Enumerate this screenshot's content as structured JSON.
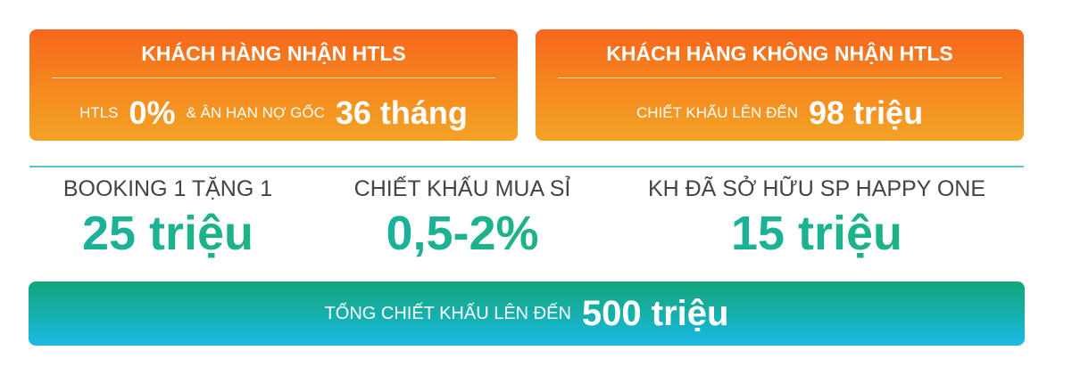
{
  "boxes": [
    {
      "title": "KHÁCH HÀNG NHẬN HTLS",
      "parts": [
        "HTLS",
        "0%",
        "& ÂN HẠN NỢ GỐC",
        "36 tháng"
      ]
    },
    {
      "title": "KHÁCH HÀNG KHÔNG NHẬN HTLS",
      "parts": [
        "CHIẾT KHẤU LÊN ĐẾN",
        "98 triệu"
      ]
    }
  ],
  "offers": [
    {
      "label": "BOOKING 1 TẶNG 1",
      "value": "25 triệu"
    },
    {
      "label": "CHIẾT KHẤU MUA SỈ",
      "value": "0,5-2%"
    },
    {
      "label": "KH ĐÃ SỞ HỮU SP HAPPY ONE",
      "value": "15 triệu"
    }
  ],
  "total": {
    "label": "TỔNG CHIẾT KHẤU LÊN ĐẾN",
    "value": "500 triệu"
  }
}
